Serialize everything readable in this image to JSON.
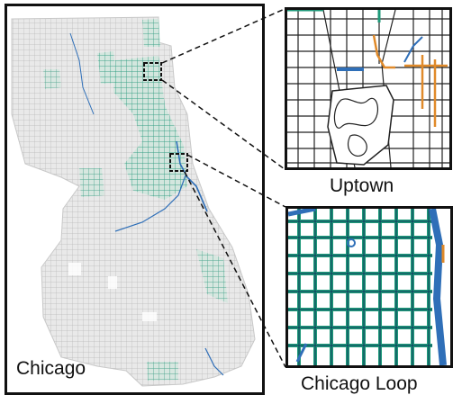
{
  "map": {
    "city_label": "Chicago",
    "insets": [
      {
        "name": "uptown",
        "label": "Uptown"
      },
      {
        "name": "loop",
        "label": "Chicago Loop"
      }
    ]
  },
  "colors": {
    "street_gray": "#b9b9b9",
    "bike_green": "#1f9a7a",
    "water_blue": "#2f6fb8",
    "route_orange": "#e08a2a",
    "frame": "#111111"
  },
  "legend_icons": [
    "dashed-callout-box",
    "dashed-connector-line"
  ]
}
